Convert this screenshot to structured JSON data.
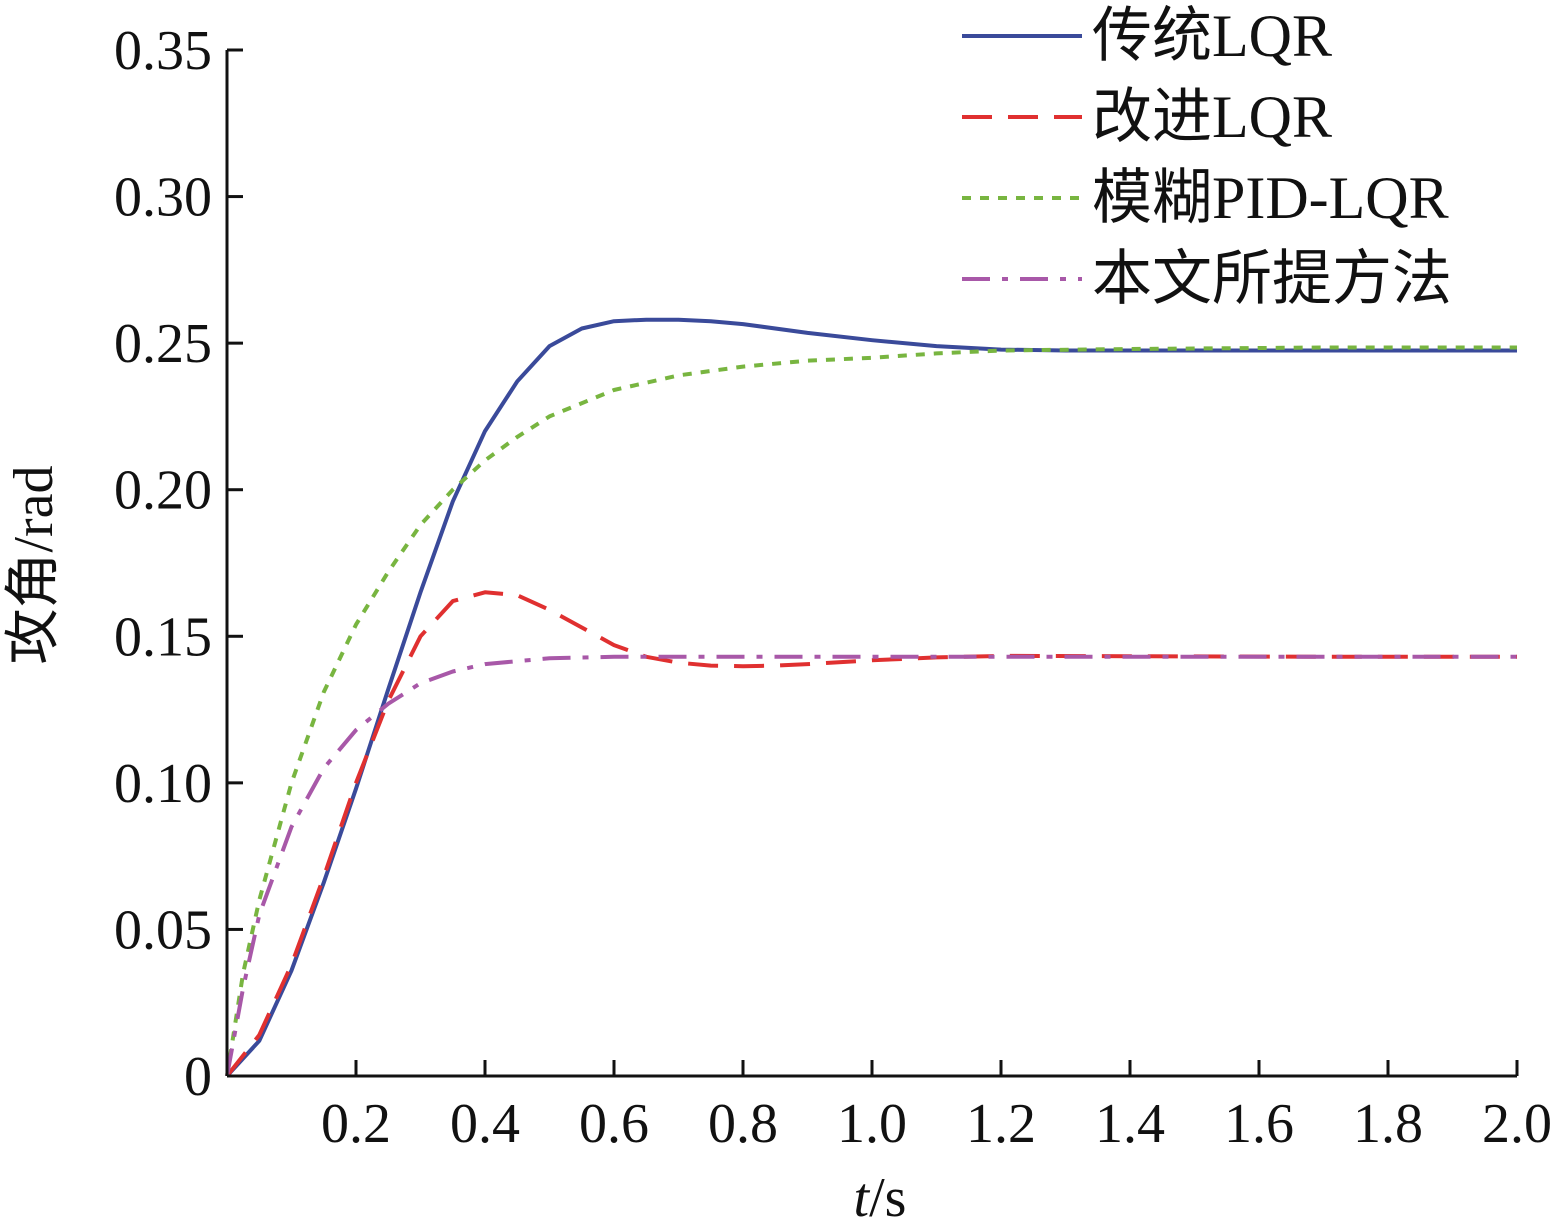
{
  "chart_data": {
    "type": "line",
    "xlabel_var": "t",
    "xlabel_unit": "/s",
    "ylabel": "攻角/rad",
    "xlim": [
      0,
      2.0
    ],
    "ylim": [
      0,
      0.35
    ],
    "x_ticks": [
      0.2,
      0.4,
      0.6,
      0.8,
      1.0,
      1.2,
      1.4,
      1.6,
      1.8,
      2.0
    ],
    "x_tick_labels": [
      "0.2",
      "0.4",
      "0.6",
      "0.8",
      "1.0",
      "1.2",
      "1.4",
      "1.6",
      "1.8",
      "2.0"
    ],
    "y_ticks": [
      0,
      0.05,
      0.1,
      0.15,
      0.2,
      0.25,
      0.3,
      0.35
    ],
    "y_tick_labels": [
      "0",
      "0.05",
      "0.10",
      "0.15",
      "0.20",
      "0.25",
      "0.30",
      "0.35"
    ],
    "grid": false,
    "legend_position": "top-right",
    "series": [
      {
        "name": "传统LQR",
        "color": "#3a4a9a",
        "dash": "solid",
        "x": [
          0,
          0.05,
          0.1,
          0.15,
          0.2,
          0.25,
          0.3,
          0.35,
          0.4,
          0.45,
          0.5,
          0.55,
          0.6,
          0.65,
          0.7,
          0.75,
          0.8,
          0.9,
          1.0,
          1.1,
          1.2,
          1.3,
          1.5,
          1.7,
          2.0
        ],
        "y": [
          0,
          0.012,
          0.036,
          0.066,
          0.098,
          0.132,
          0.165,
          0.196,
          0.22,
          0.237,
          0.249,
          0.255,
          0.2575,
          0.258,
          0.258,
          0.2575,
          0.2565,
          0.2535,
          0.251,
          0.249,
          0.2478,
          0.2475,
          0.2475,
          0.2475,
          0.2475
        ]
      },
      {
        "name": "改进LQR",
        "color": "#e03030",
        "dash": "long-dash",
        "x": [
          0,
          0.05,
          0.1,
          0.15,
          0.2,
          0.25,
          0.3,
          0.35,
          0.4,
          0.45,
          0.5,
          0.55,
          0.6,
          0.65,
          0.7,
          0.75,
          0.8,
          0.85,
          0.9,
          1.0,
          1.1,
          1.2,
          1.4,
          1.7,
          2.0
        ],
        "y": [
          0,
          0.014,
          0.038,
          0.068,
          0.1,
          0.128,
          0.15,
          0.162,
          0.165,
          0.164,
          0.159,
          0.153,
          0.147,
          0.143,
          0.141,
          0.14,
          0.1398,
          0.14,
          0.1405,
          0.1418,
          0.1428,
          0.1433,
          0.1432,
          0.143,
          0.143
        ]
      },
      {
        "name": "模糊PID-LQR",
        "color": "#78b540",
        "dash": "dotted",
        "x": [
          0,
          0.025,
          0.05,
          0.1,
          0.15,
          0.2,
          0.25,
          0.3,
          0.35,
          0.4,
          0.45,
          0.5,
          0.6,
          0.7,
          0.8,
          0.9,
          1.0,
          1.1,
          1.2,
          1.4,
          1.7,
          2.0
        ],
        "y": [
          0,
          0.035,
          0.06,
          0.1,
          0.131,
          0.154,
          0.172,
          0.188,
          0.2,
          0.21,
          0.218,
          0.225,
          0.234,
          0.239,
          0.242,
          0.244,
          0.245,
          0.2465,
          0.2475,
          0.248,
          0.2485,
          0.2485
        ]
      },
      {
        "name": "本文所提方法",
        "color": "#a858a8",
        "dash": "dash-dot",
        "x": [
          0,
          0.025,
          0.05,
          0.1,
          0.15,
          0.2,
          0.25,
          0.3,
          0.35,
          0.4,
          0.5,
          0.6,
          0.8,
          1.0,
          1.5,
          2.0
        ],
        "y": [
          0,
          0.03,
          0.055,
          0.085,
          0.105,
          0.118,
          0.127,
          0.134,
          0.138,
          0.1405,
          0.1425,
          0.143,
          0.143,
          0.143,
          0.143,
          0.143
        ]
      }
    ]
  }
}
